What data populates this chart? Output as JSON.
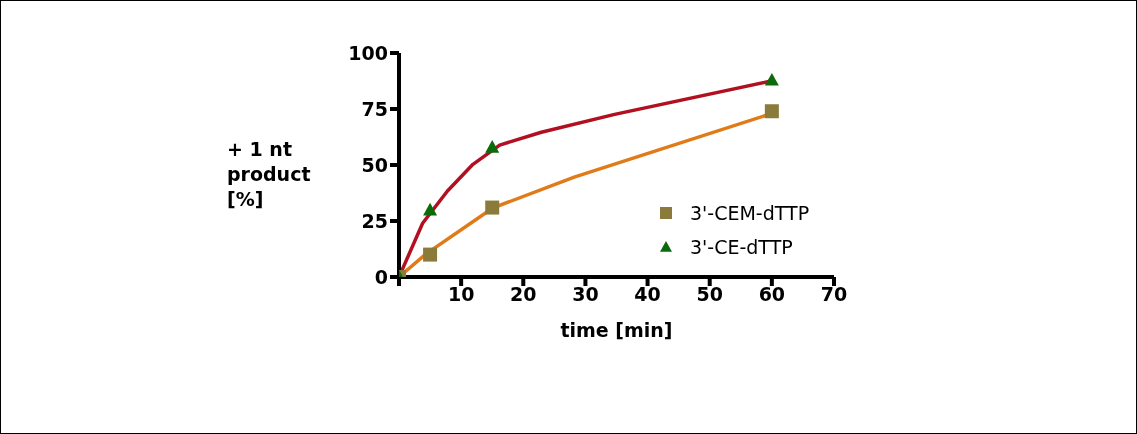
{
  "chart_data": {
    "type": "scatter",
    "xlabel": "time [min]",
    "ylabel": "+ 1 nt product [%]",
    "xlim": [
      0,
      70
    ],
    "xticks": [
      {
        "value": 0,
        "label": null
      },
      10,
      20,
      30,
      40,
      50,
      60,
      70
    ],
    "ylim": [
      0,
      100
    ],
    "yticks": [
      0,
      25,
      50,
      75,
      100
    ],
    "grid": false,
    "legend": "right",
    "series": [
      {
        "type": "line",
        "color": "#e07b1a",
        "marker": "none",
        "x": [
          0,
          4.3,
          15.1,
          28.2,
          60.2
        ],
        "values": [
          0,
          10.2,
          30.8,
          44.6,
          73.2
        ]
      },
      {
        "type": "line",
        "color": "#b01020",
        "marker": "none",
        "x": [
          0,
          3.8,
          7.8,
          11.9,
          16.2,
          22.9,
          34.7,
          60.2
        ],
        "values": [
          0,
          24,
          38.4,
          50.3,
          58.9,
          64.6,
          72.6,
          87.7
        ]
      },
      {
        "name": "3'-CEM-dTTP",
        "color": "#8b7b3a",
        "marker": "square",
        "x": [
          0,
          5,
          15,
          60
        ],
        "values": [
          0,
          10,
          31,
          74
        ]
      },
      {
        "name": "3'-CE-dTTP",
        "color": "#0b6b0b",
        "marker": "triangle",
        "x": [
          0,
          5,
          15,
          60
        ],
        "values": [
          0,
          30,
          58,
          88
        ]
      }
    ]
  }
}
